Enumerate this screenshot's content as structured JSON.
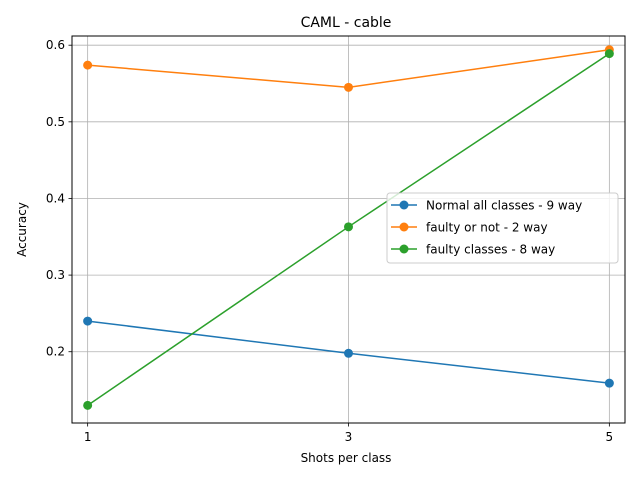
{
  "chart_data": {
    "type": "line",
    "title": "CAML - cable",
    "xlabel": "Shots per class",
    "ylabel": "Accuracy",
    "x": [
      1,
      3,
      5
    ],
    "x_tick_labels": [
      "1",
      "3",
      "5"
    ],
    "y_ticks": [
      0.2,
      0.3,
      0.4,
      0.5,
      0.6
    ],
    "y_tick_labels": [
      "0.2",
      "0.3",
      "0.4",
      "0.5",
      "0.6"
    ],
    "xlim": [
      0.88,
      5.12
    ],
    "ylim": [
      0.107,
      0.612
    ],
    "grid": true,
    "legend_position": "center-right",
    "series": [
      {
        "name": "Normal all classes - 9 way",
        "color": "#1f77b4",
        "values": [
          0.24,
          0.198,
          0.159
        ]
      },
      {
        "name": "faulty or not - 2 way",
        "color": "#ff7f0e",
        "values": [
          0.574,
          0.545,
          0.594
        ]
      },
      {
        "name": "faulty classes - 8 way",
        "color": "#2ca02c",
        "values": [
          0.13,
          0.363,
          0.589
        ]
      }
    ]
  }
}
